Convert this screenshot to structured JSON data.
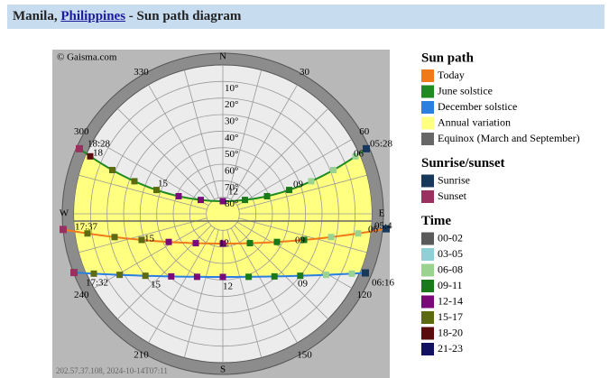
{
  "header": {
    "place": "Manila,",
    "country": "Philippines",
    "suffix": "- Sun path diagram"
  },
  "diagram": {
    "copyright": "© Gaisma.com",
    "footer": "202.57.37.108, 2024-10-14T07:11",
    "directions": [
      "N",
      "E",
      "S",
      "W"
    ],
    "azimuth_labels": [
      "30",
      "60",
      "120",
      "150",
      "210",
      "240",
      "300",
      "330"
    ],
    "altitude_labels": [
      "10°",
      "20°",
      "30°",
      "40°",
      "50°",
      "60°",
      "70°",
      "80°"
    ],
    "hour_labels": [
      "18:28",
      "18",
      "15",
      "12",
      "09",
      "05:28",
      "06",
      "17:37",
      "15",
      "12",
      "09",
      "06",
      "05:4",
      "17:32",
      "15",
      "12",
      "09",
      "06:16"
    ]
  },
  "legend": {
    "sun_path": {
      "title": "Sun path",
      "items": [
        {
          "label": "Today",
          "color": "#f07a1a"
        },
        {
          "label": "June solstice",
          "color": "#1f8a1f"
        },
        {
          "label": "December solstice",
          "color": "#2a7fe0"
        },
        {
          "label": "Annual variation",
          "color": "#ffff80"
        },
        {
          "label": "Equinox (March and September)",
          "color": "#666666"
        }
      ]
    },
    "sunrise_sunset": {
      "title": "Sunrise/sunset",
      "items": [
        {
          "label": "Sunrise",
          "color": "#17385a"
        },
        {
          "label": "Sunset",
          "color": "#9a3060"
        }
      ]
    },
    "time": {
      "title": "Time",
      "items": [
        {
          "label": "00-02",
          "color": "#5a5a5a"
        },
        {
          "label": "03-05",
          "color": "#8fcfd6"
        },
        {
          "label": "06-08",
          "color": "#9ad28f"
        },
        {
          "label": "09-11",
          "color": "#1a7a1a"
        },
        {
          "label": "12-14",
          "color": "#7a0a7a"
        },
        {
          "label": "15-17",
          "color": "#5c6a10"
        },
        {
          "label": "18-20",
          "color": "#5a0c0c"
        },
        {
          "label": "21-23",
          "color": "#121060"
        }
      ]
    }
  }
}
